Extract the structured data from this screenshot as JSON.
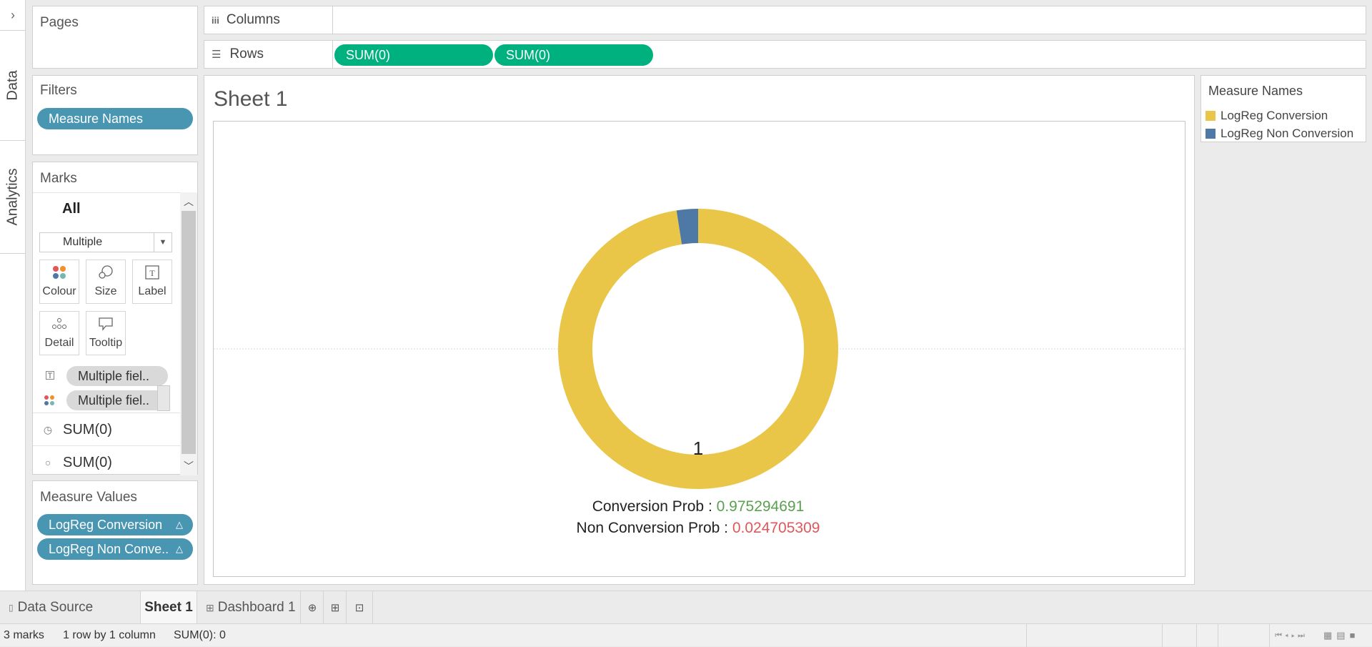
{
  "sidebar": {
    "data_tab": "Data",
    "analytics_tab": "Analytics",
    "collapse": "›"
  },
  "pages": {
    "title": "Pages"
  },
  "filters": {
    "title": "Filters",
    "pills": [
      "Measure Names"
    ]
  },
  "marks": {
    "title": "Marks",
    "all_label": "All",
    "mark_type": "Multiple",
    "cards": [
      "Colour",
      "Size",
      "Label",
      "Detail",
      "Tooltip"
    ],
    "fields": [
      "Multiple fiel..",
      "Multiple fiel.."
    ],
    "sub_rows": [
      "SUM(0)",
      "SUM(0)"
    ]
  },
  "measure_values": {
    "title": "Measure Values",
    "pills": [
      "LogReg Conversion",
      "LogReg Non Conve.."
    ],
    "delta": "△"
  },
  "shelves": {
    "columns_label": "Columns",
    "rows_label": "Rows",
    "rows_pills": [
      "SUM(0)",
      "SUM(0)"
    ]
  },
  "sheet": {
    "title": "Sheet 1"
  },
  "legend": {
    "title": "Measure Names",
    "items": [
      {
        "label": "LogReg Conversion",
        "color": "#e9c647"
      },
      {
        "label": "LogReg Non Conversion",
        "color": "#4e79a7"
      }
    ]
  },
  "chart_data": {
    "type": "pie",
    "style": "donut",
    "categories": [
      "LogReg Conversion",
      "LogReg Non Conversion"
    ],
    "values": [
      0.975294691,
      0.024705309
    ],
    "colors": [
      "#e9c647",
      "#4e79a7"
    ],
    "center_label": "1",
    "annotations": [
      {
        "label": "Conversion Prob :",
        "value": "0.975294691",
        "value_color": "#59a14f"
      },
      {
        "label": "Non Conversion Prob :",
        "value": "0.024705309",
        "value_color": "#e15759"
      }
    ]
  },
  "bottom_tabs": {
    "data_source": "Data Source",
    "sheet": "Sheet 1",
    "dashboard": "Dashboard 1"
  },
  "status": {
    "marks": "3 marks",
    "dims": "1 row by 1 column",
    "sum": "SUM(0): 0"
  }
}
